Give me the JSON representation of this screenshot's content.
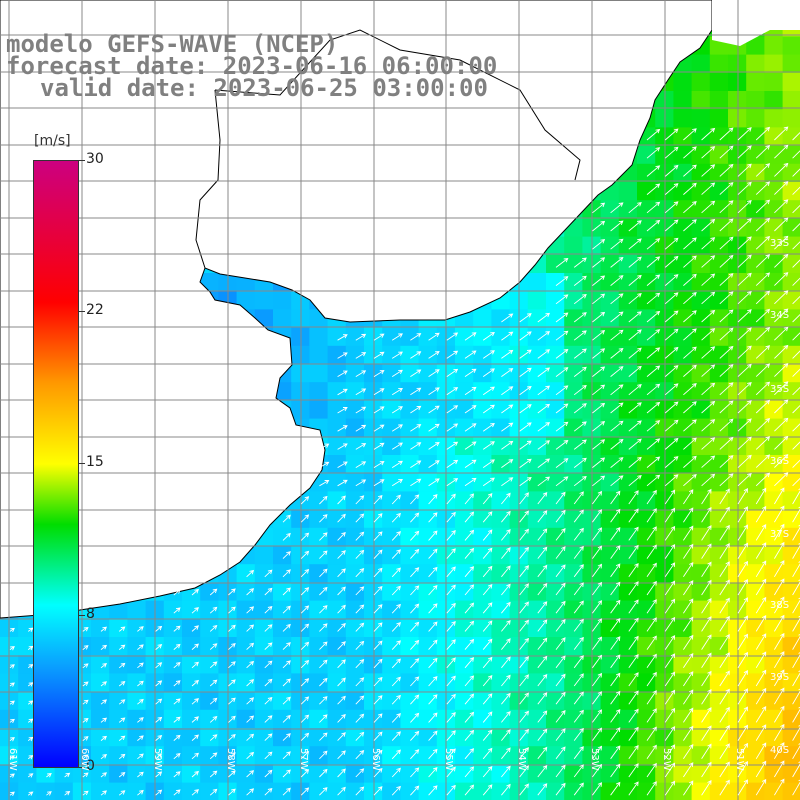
{
  "title": {
    "line1": "modelo GEFS-WAVE (NCEP)",
    "line2": "forecast date: 2023-06-16 06:00:00",
    "line3": "valid date: 2023-06-25 03:00:00"
  },
  "colorbar": {
    "units": "[m/s]",
    "ticks": [
      "30",
      "22",
      "15",
      "8",
      "0"
    ],
    "min": 0,
    "max": 30,
    "stops": [
      {
        "v": 0,
        "c": "#0000ff"
      },
      {
        "v": 5,
        "c": "#0aa0ff"
      },
      {
        "v": 8,
        "c": "#00ffff"
      },
      {
        "v": 12,
        "c": "#00dd00"
      },
      {
        "v": 15,
        "c": "#ffff00"
      },
      {
        "v": 19,
        "c": "#ff9900"
      },
      {
        "v": 23,
        "c": "#ff0000"
      },
      {
        "v": 30,
        "c": "#cc0080"
      }
    ]
  },
  "map": {
    "lat_labels": [
      "33S",
      "34S",
      "35S",
      "36S",
      "37S",
      "38S",
      "39S",
      "40S",
      "41S"
    ],
    "lon_labels": [
      "61W",
      "60W",
      "59W",
      "58W",
      "57W",
      "56W",
      "55W",
      "54W",
      "53W",
      "52W",
      "51W"
    ],
    "land_color": "#ffffff",
    "coast_color": "#000000",
    "grid_color": "#888888",
    "arrow_color": "#ffffff",
    "field_summary": {
      "rio_de_la_plata": 5,
      "coastal": 6.5,
      "open_ocean_mid": 12,
      "southeast_max": 17
    }
  }
}
